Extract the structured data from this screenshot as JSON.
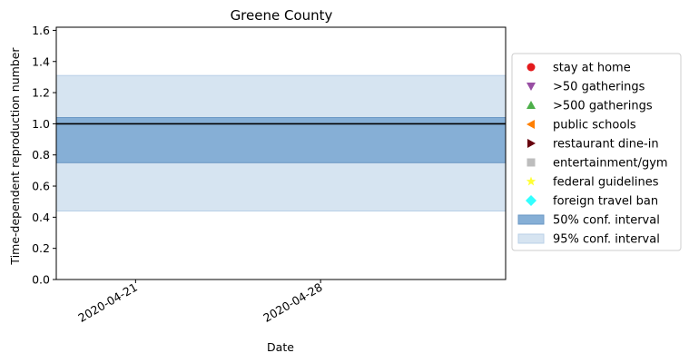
{
  "chart_data": {
    "type": "area",
    "title": "Greene County",
    "xlabel": "Date",
    "ylabel": "Time-dependent reproduction number",
    "x_range": [
      "2020-04-18",
      "2020-05-05"
    ],
    "x_ticks": [
      "2020-04-21",
      "2020-04-28"
    ],
    "ylim": [
      0,
      1.62
    ],
    "y_ticks": [
      0.0,
      0.2,
      0.4,
      0.6,
      0.8,
      1.0,
      1.2,
      1.4,
      1.6
    ],
    "reference_line": 1.0,
    "ci95": [
      0.44,
      1.31
    ],
    "ci50": [
      0.75,
      1.04
    ],
    "grid": false,
    "legend_position": "right",
    "colors": {
      "ci50": "#86afd6",
      "ci50_edge": "#6a97c4",
      "ci95": "#d6e4f1",
      "ci95_edge": "#b9d0e7",
      "reference": "#000000"
    },
    "legend": [
      {
        "label": "stay at home",
        "marker": "circle",
        "color": "#e41a1c"
      },
      {
        "label": ">50 gatherings",
        "marker": "triangle-down",
        "color": "#984ea3"
      },
      {
        "label": ">500 gatherings",
        "marker": "triangle-up",
        "color": "#4daf4a"
      },
      {
        "label": "public schools",
        "marker": "triangle-left",
        "color": "#ff7f00"
      },
      {
        "label": "restaurant dine-in",
        "marker": "triangle-right",
        "color": "#67000d"
      },
      {
        "label": "entertainment/gym",
        "marker": "square",
        "color": "#bdbdbd"
      },
      {
        "label": "federal guidelines",
        "marker": "star",
        "color": "#ffff33"
      },
      {
        "label": "foreign travel ban",
        "marker": "diamond",
        "color": "#33ffff"
      },
      {
        "label": "50% conf. interval",
        "marker": "patch",
        "color": "#86afd6"
      },
      {
        "label": "95% conf. interval",
        "marker": "patch",
        "color": "#d6e4f1"
      }
    ]
  }
}
